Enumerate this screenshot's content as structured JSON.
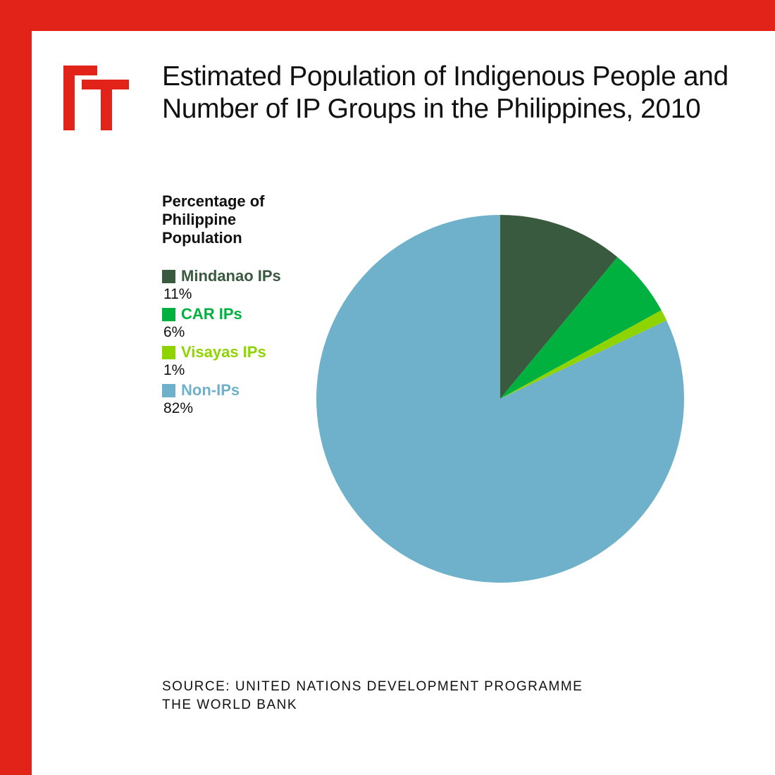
{
  "brand": {
    "frame_color": "#e2231a",
    "logo_icon": "ft-logo-icon",
    "logo_color": "#e2231a"
  },
  "title": "Estimated Population of Indigenous People and Number of IP Groups in the Philippines, 2010",
  "legend_title": "Percentage of Philippine Population",
  "source": [
    "SOURCE: UNITED NATIONS DEVELOPMENT PROGRAMME",
    "THE WORLD BANK"
  ],
  "chart_data": {
    "type": "pie",
    "categories": [
      "Mindanao IPs",
      "CAR IPs",
      "Visayas IPs",
      "Non-IPs"
    ],
    "values": [
      11,
      6,
      1,
      82
    ],
    "value_labels": [
      "11%",
      "6%",
      "1%",
      "82%"
    ],
    "colors": [
      "#3a5a40",
      "#00b140",
      "#8fd400",
      "#6fb1ca"
    ],
    "legend_position": "left",
    "start_angle_deg": 0,
    "direction": "clockwise"
  }
}
